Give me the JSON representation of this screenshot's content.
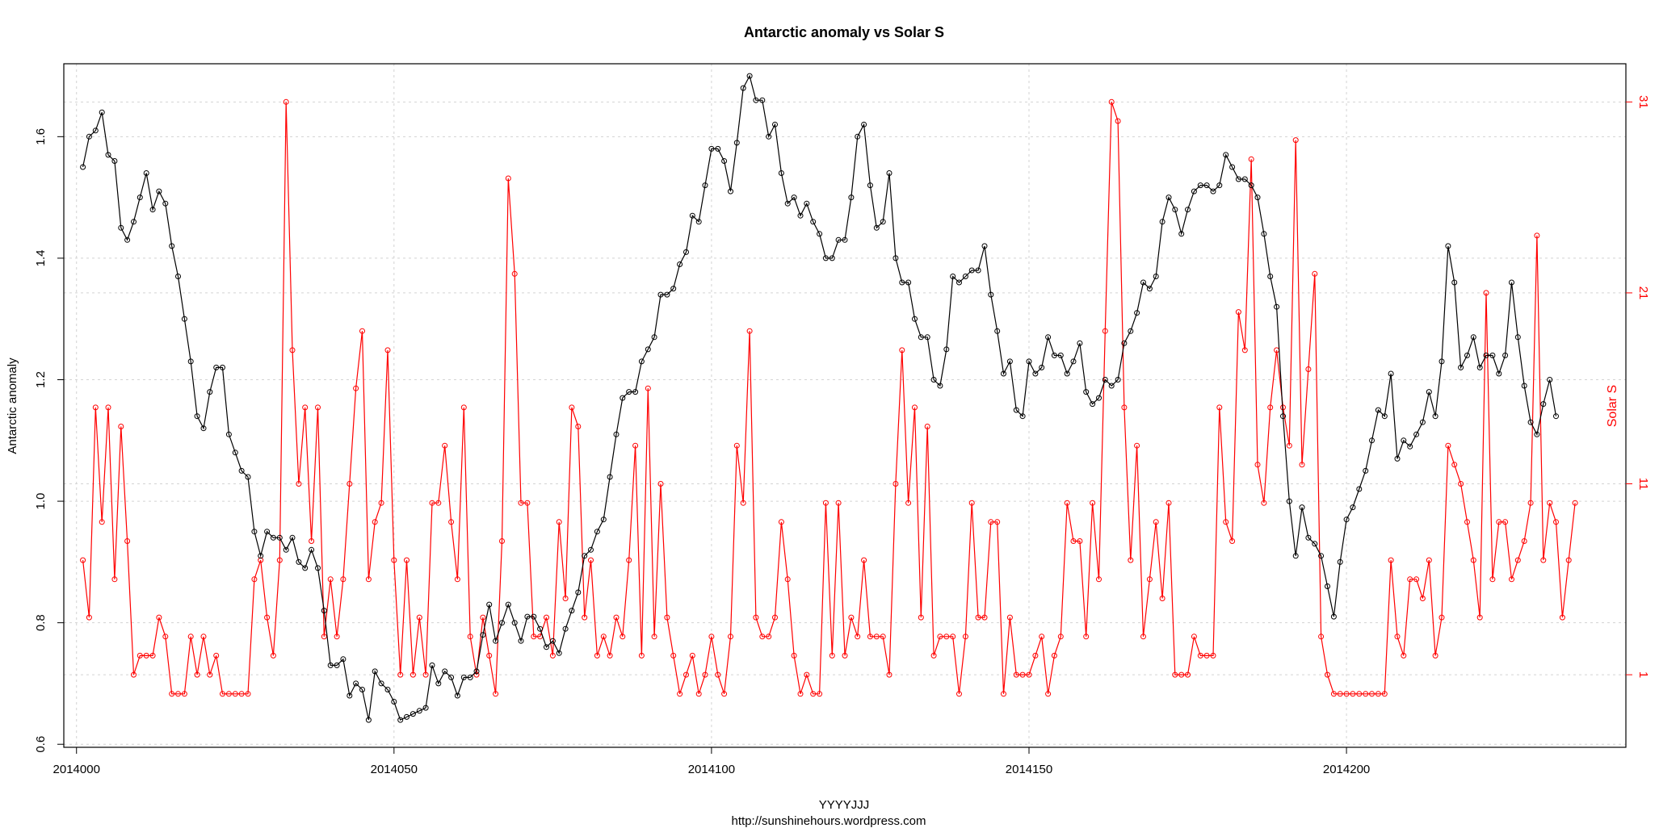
{
  "chart_data": {
    "type": "line",
    "title": "Antarctic anomaly  vs  Solar S",
    "xlabel": "YYYYJJJ",
    "caption": "http://sunshinehours.wordpress.com",
    "ylabel_left": "Antarctic anomaly",
    "ylabel_right": "Solar S",
    "x_start": 2014001,
    "x_end": 2014231,
    "xlim": [
      2013998,
      2014244
    ],
    "ylim_left": [
      0.595,
      1.72
    ],
    "ylim_right": [
      -2.8,
      33
    ],
    "x_ticks": [
      2014000,
      2014050,
      2014100,
      2014150,
      2014200
    ],
    "y_ticks_left": [
      0.6,
      0.8,
      1.0,
      1.2,
      1.4,
      1.6
    ],
    "y_ticks_right": [
      1,
      11,
      21,
      31
    ],
    "grid": "dotted",
    "colors": {
      "antarctic": "#000000",
      "solar": "#ff0000",
      "grid": "#d3d3d3"
    },
    "series": [
      {
        "name": "Antarctic anomaly",
        "axis": "left",
        "values": [
          1.55,
          1.6,
          1.61,
          1.64,
          1.57,
          1.56,
          1.45,
          1.43,
          1.46,
          1.5,
          1.54,
          1.48,
          1.51,
          1.49,
          1.42,
          1.37,
          1.3,
          1.23,
          1.14,
          1.12,
          1.18,
          1.22,
          1.22,
          1.11,
          1.08,
          1.05,
          1.04,
          0.95,
          0.91,
          0.95,
          0.94,
          0.94,
          0.92,
          0.94,
          0.9,
          0.89,
          0.92,
          0.89,
          0.82,
          0.73,
          0.73,
          0.74,
          0.68,
          0.7,
          0.69,
          0.64,
          0.72,
          0.7,
          0.69,
          0.67,
          0.64,
          0.645,
          0.65,
          0.655,
          0.66,
          0.73,
          0.7,
          0.72,
          0.71,
          0.68,
          0.71,
          0.71,
          0.72,
          0.78,
          0.83,
          0.77,
          0.8,
          0.83,
          0.8,
          0.77,
          0.81,
          0.81,
          0.79,
          0.76,
          0.77,
          0.75,
          0.79,
          0.82,
          0.85,
          0.91,
          0.92,
          0.95,
          0.97,
          1.04,
          1.11,
          1.17,
          1.18,
          1.18,
          1.23,
          1.25,
          1.27,
          1.34,
          1.34,
          1.35,
          1.39,
          1.41,
          1.47,
          1.46,
          1.52,
          1.58,
          1.58,
          1.56,
          1.51,
          1.59,
          1.68,
          1.7,
          1.66,
          1.66,
          1.6,
          1.62,
          1.54,
          1.49,
          1.5,
          1.47,
          1.49,
          1.46,
          1.44,
          1.4,
          1.4,
          1.43,
          1.43,
          1.5,
          1.6,
          1.62,
          1.52,
          1.45,
          1.46,
          1.54,
          1.4,
          1.36,
          1.36,
          1.3,
          1.27,
          1.27,
          1.2,
          1.19,
          1.25,
          1.37,
          1.36,
          1.37,
          1.38,
          1.38,
          1.42,
          1.34,
          1.28,
          1.21,
          1.23,
          1.15,
          1.14,
          1.23,
          1.21,
          1.22,
          1.27,
          1.24,
          1.24,
          1.21,
          1.23,
          1.26,
          1.18,
          1.16,
          1.17,
          1.2,
          1.19,
          1.2,
          1.26,
          1.28,
          1.31,
          1.36,
          1.35,
          1.37,
          1.46,
          1.5,
          1.48,
          1.44,
          1.48,
          1.51,
          1.52,
          1.52,
          1.51,
          1.52,
          1.57,
          1.55,
          1.53,
          1.53,
          1.52,
          1.5,
          1.44,
          1.37,
          1.32,
          1.14,
          1.0,
          0.91,
          0.99,
          0.94,
          0.93,
          0.91,
          0.86,
          0.81,
          0.9,
          0.97,
          0.99,
          1.02,
          1.05,
          1.1,
          1.15,
          1.14,
          1.21,
          1.07,
          1.1,
          1.09,
          1.11,
          1.13,
          1.18,
          1.14,
          1.23,
          1.42,
          1.36,
          1.22,
          1.24,
          1.27,
          1.22,
          1.24,
          1.24,
          1.21,
          1.24,
          1.36,
          1.27,
          1.19,
          1.13,
          1.11,
          1.16,
          1.2,
          1.14
        ]
      },
      {
        "name": "Solar S",
        "axis": "right",
        "values": [
          7,
          4,
          15,
          9,
          15,
          6,
          14,
          8,
          1,
          2,
          2,
          2,
          4,
          3,
          0,
          0,
          0,
          3,
          1,
          3,
          1,
          2,
          0,
          0,
          0,
          0,
          0,
          6,
          7,
          4,
          2,
          7,
          31,
          18,
          11,
          15,
          8,
          15,
          3,
          6,
          3,
          6,
          11,
          16,
          19,
          6,
          9,
          10,
          18,
          7,
          1,
          7,
          1,
          4,
          1,
          10,
          10,
          13,
          9,
          6,
          15,
          3,
          1,
          4,
          2,
          0,
          8,
          27,
          22,
          10,
          10,
          3,
          3,
          4,
          2,
          9,
          5,
          15,
          14,
          4,
          7,
          2,
          3,
          2,
          4,
          3,
          7,
          13,
          2,
          16,
          3,
          11,
          4,
          2,
          0,
          1,
          2,
          0,
          1,
          3,
          1,
          0,
          3,
          13,
          10,
          19,
          4,
          3,
          3,
          4,
          9,
          6,
          2,
          0,
          1,
          0,
          0,
          10,
          2,
          10,
          2,
          4,
          3,
          7,
          3,
          3,
          3,
          1,
          11,
          18,
          10,
          15,
          4,
          14,
          2,
          3,
          3,
          3,
          0,
          3,
          10,
          4,
          4,
          9,
          9,
          0,
          4,
          1,
          1,
          1,
          2,
          3,
          0,
          2,
          3,
          10,
          8,
          8,
          3,
          10,
          6,
          19,
          31,
          30,
          15,
          7,
          13,
          3,
          6,
          9,
          5,
          10,
          1,
          1,
          1,
          3,
          2,
          2,
          2,
          15,
          9,
          8,
          20,
          18,
          28,
          12,
          10,
          15,
          18,
          15,
          13,
          29,
          12,
          17,
          22,
          3,
          1,
          0,
          0,
          0,
          0,
          0,
          0,
          0,
          0,
          0,
          7,
          3,
          2,
          6,
          6,
          5,
          7,
          2,
          4,
          13,
          12,
          11,
          9,
          7,
          4,
          21,
          6,
          9,
          9,
          6,
          7,
          8,
          10,
          24,
          7,
          10,
          9,
          4,
          7,
          10
        ]
      }
    ]
  }
}
